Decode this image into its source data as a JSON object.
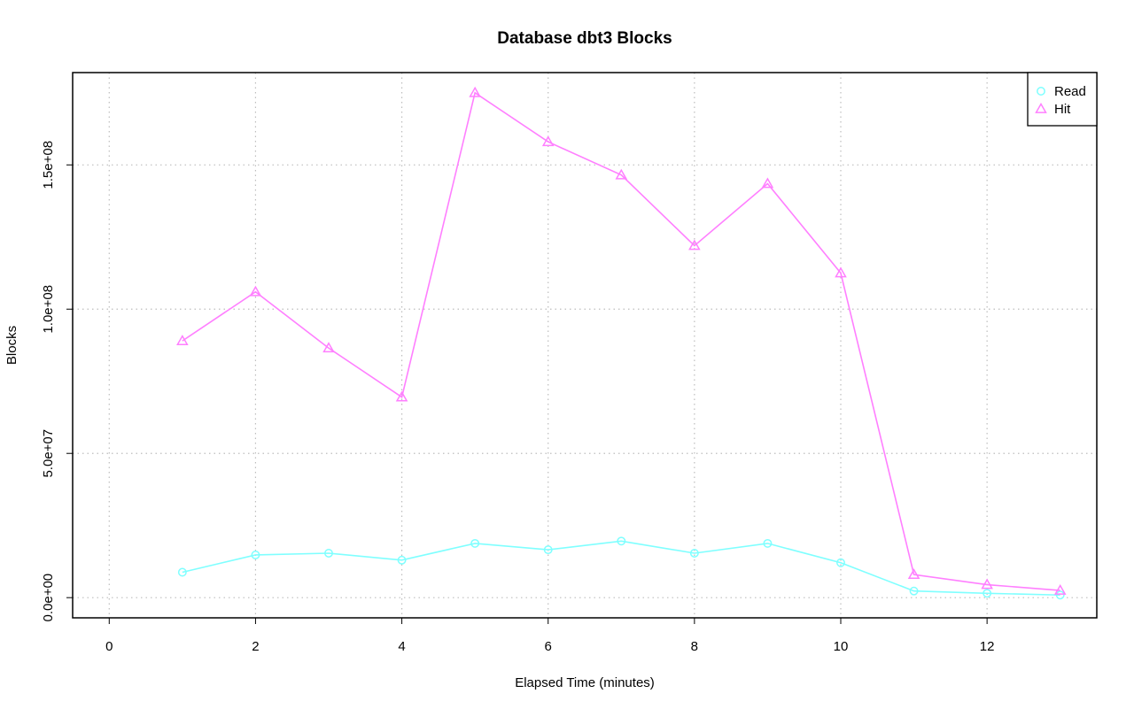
{
  "chart_data": {
    "type": "line",
    "title": "Database dbt3 Blocks",
    "xlabel": "Elapsed Time (minutes)",
    "ylabel": "Blocks",
    "xlim": [
      -0.5,
      13.5
    ],
    "ylim": [
      -7000000,
      182000000
    ],
    "x_ticks": [
      0,
      2,
      4,
      6,
      8,
      10,
      12
    ],
    "x_tick_labels": [
      "0",
      "2",
      "4",
      "6",
      "8",
      "10",
      "12"
    ],
    "y_ticks": [
      0,
      50000000,
      100000000,
      150000000
    ],
    "y_tick_labels": [
      "0.0e+00",
      "5.0e+07",
      "1.0e+08",
      "1.5e+08"
    ],
    "grid": true,
    "legend_position": "top-right",
    "x": [
      1,
      2,
      3,
      4,
      5,
      6,
      7,
      8,
      9,
      10,
      11,
      12,
      13
    ],
    "series": [
      {
        "name": "Read",
        "color": "#7fffff",
        "marker": "circle",
        "values": [
          8800000,
          14800000,
          15400000,
          13000000,
          18800000,
          16600000,
          19600000,
          15400000,
          18800000,
          12100000,
          2300000,
          1500000,
          900000
        ]
      },
      {
        "name": "Hit",
        "color": "#ff7fff",
        "marker": "triangle",
        "values": [
          89000000,
          106000000,
          86500000,
          69500000,
          175000000,
          158000000,
          146500000,
          122000000,
          143500000,
          112500000,
          8000000,
          4500000,
          2500000
        ]
      }
    ]
  }
}
